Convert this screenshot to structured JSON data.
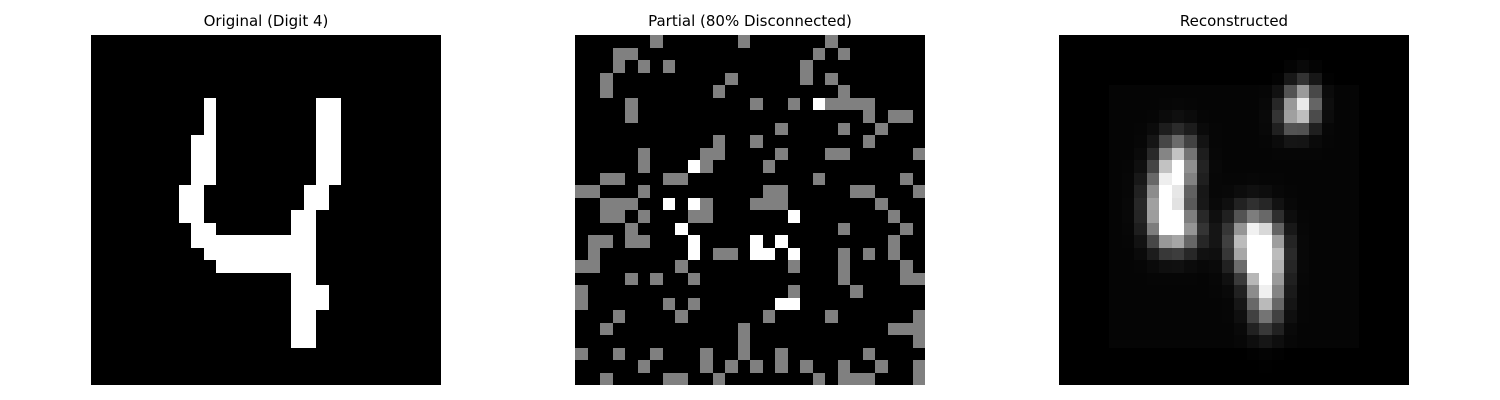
{
  "panels": [
    {
      "title": "Original (Digit 4)"
    },
    {
      "title": "Partial (80% Disconnected)"
    },
    {
      "title": "Reconstructed"
    }
  ]
}
